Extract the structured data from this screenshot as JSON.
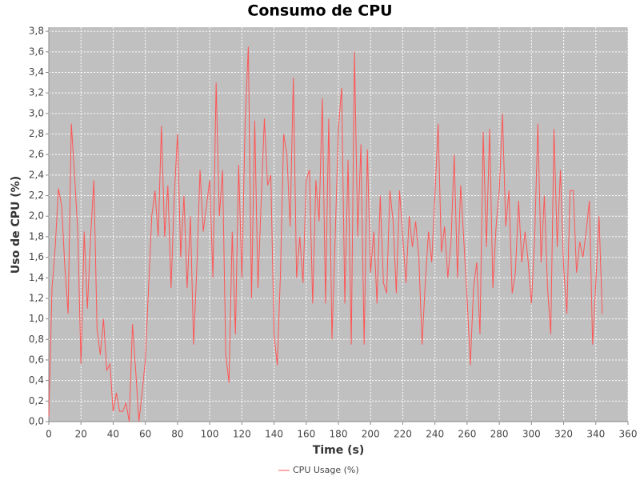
{
  "chart_data": {
    "type": "line",
    "title": "Consumo de CPU",
    "xlabel": "Time (s)",
    "ylabel": "Uso de CPU (%)",
    "x": [
      0,
      2,
      4,
      6,
      8,
      10,
      12,
      14,
      16,
      18,
      20,
      22,
      24,
      26,
      28,
      30,
      32,
      34,
      36,
      38,
      40,
      42,
      44,
      46,
      48,
      50,
      52,
      54,
      56,
      58,
      60,
      62,
      64,
      66,
      68,
      70,
      72,
      74,
      76,
      78,
      80,
      82,
      84,
      86,
      88,
      90,
      92,
      94,
      96,
      98,
      100,
      102,
      104,
      106,
      108,
      110,
      112,
      114,
      116,
      118,
      120,
      122,
      124,
      126,
      128,
      130,
      132,
      134,
      136,
      138,
      140,
      142,
      144,
      146,
      148,
      150,
      152,
      154,
      156,
      158,
      160,
      162,
      164,
      166,
      168,
      170,
      172,
      174,
      176,
      178,
      180,
      182,
      184,
      186,
      188,
      190,
      192,
      194,
      196,
      198,
      200,
      202,
      204,
      206,
      208,
      210,
      212,
      214,
      216,
      218,
      220,
      222,
      224,
      226,
      228,
      230,
      232,
      234,
      236,
      238,
      240,
      242,
      244,
      246,
      248,
      250,
      252,
      254,
      256,
      258,
      260,
      262,
      264,
      266,
      268,
      270,
      272,
      274,
      276,
      278,
      280,
      282,
      284,
      286,
      288,
      290,
      292,
      294,
      296,
      298,
      300,
      302,
      304,
      306,
      308,
      310,
      312,
      314,
      316,
      318,
      320,
      322,
      324,
      326,
      328,
      330,
      332,
      334,
      336,
      338,
      340,
      342,
      344
    ],
    "series": [
      {
        "name": "CPU Usage (%)",
        "color": "#ff5555",
        "values": [
          0.05,
          1.3,
          1.7,
          2.27,
          2.1,
          1.5,
          1.05,
          2.9,
          2.4,
          1.85,
          0.56,
          1.85,
          1.1,
          1.8,
          2.35,
          0.9,
          0.65,
          1.0,
          0.5,
          0.56,
          0.1,
          0.28,
          0.1,
          0.1,
          0.18,
          0.0,
          0.95,
          0.5,
          0.0,
          0.28,
          0.6,
          1.3,
          2.0,
          2.25,
          1.8,
          2.88,
          1.8,
          2.3,
          1.3,
          2.2,
          2.8,
          1.6,
          2.2,
          1.3,
          2.0,
          0.75,
          1.5,
          2.45,
          1.85,
          2.1,
          2.35,
          1.4,
          3.3,
          2.0,
          2.45,
          0.65,
          0.38,
          1.85,
          0.85,
          2.5,
          1.4,
          2.9,
          3.65,
          1.2,
          2.93,
          1.3,
          2.15,
          2.95,
          2.3,
          2.4,
          0.85,
          0.55,
          1.45,
          2.8,
          2.6,
          1.9,
          3.35,
          1.4,
          1.8,
          1.35,
          2.35,
          2.45,
          1.15,
          2.35,
          1.95,
          3.15,
          1.15,
          2.95,
          0.8,
          1.8,
          2.85,
          3.25,
          1.15,
          2.55,
          0.75,
          3.6,
          1.8,
          2.7,
          0.75,
          2.65,
          1.45,
          1.85,
          1.15,
          2.2,
          1.35,
          1.25,
          2.25,
          1.95,
          1.25,
          2.25,
          1.8,
          1.35,
          2.0,
          1.7,
          1.95,
          1.6,
          0.75,
          1.35,
          1.85,
          1.55,
          2.2,
          2.9,
          1.65,
          1.9,
          1.4,
          1.75,
          2.6,
          1.4,
          2.3,
          1.75,
          1.2,
          0.55,
          1.3,
          1.55,
          0.85,
          2.82,
          1.7,
          2.85,
          1.3,
          1.9,
          2.25,
          3.0,
          1.9,
          2.25,
          1.25,
          1.45,
          2.15,
          1.55,
          1.85,
          1.55,
          1.15,
          1.8,
          2.9,
          1.55,
          2.2,
          1.3,
          0.85,
          2.85,
          1.7,
          2.45,
          1.5,
          1.05,
          2.25,
          2.25,
          1.45,
          1.75,
          1.6,
          1.85,
          2.15,
          0.75,
          1.35,
          2.0,
          1.05
        ]
      }
    ],
    "xlim": [
      0,
      360
    ],
    "xticks": [
      0,
      20,
      40,
      60,
      80,
      100,
      120,
      140,
      160,
      180,
      200,
      220,
      240,
      260,
      280,
      300,
      320,
      340,
      360
    ],
    "ylim": [
      0,
      3.84
    ],
    "yticks": [
      {
        "value": 0,
        "label": "0,0"
      },
      {
        "value": 0.2,
        "label": "0,2"
      },
      {
        "value": 0.4,
        "label": "0,4"
      },
      {
        "value": 0.6,
        "label": "0,6"
      },
      {
        "value": 0.8,
        "label": "0,8"
      },
      {
        "value": 1.0,
        "label": "1,0"
      },
      {
        "value": 1.2,
        "label": "1,2"
      },
      {
        "value": 1.4,
        "label": "1,4"
      },
      {
        "value": 1.6,
        "label": "1,6"
      },
      {
        "value": 1.8,
        "label": "1,8"
      },
      {
        "value": 2.0,
        "label": "2,0"
      },
      {
        "value": 2.2,
        "label": "2,2"
      },
      {
        "value": 2.4,
        "label": "2,4"
      },
      {
        "value": 2.6,
        "label": "2,6"
      },
      {
        "value": 2.8,
        "label": "2,8"
      },
      {
        "value": 3.0,
        "label": "3,0"
      },
      {
        "value": 3.2,
        "label": "3,2"
      },
      {
        "value": 3.4,
        "label": "3,4"
      },
      {
        "value": 3.6,
        "label": "3,6"
      },
      {
        "value": 3.8,
        "label": "3,8"
      }
    ],
    "grid": true,
    "legend": "bottom"
  }
}
